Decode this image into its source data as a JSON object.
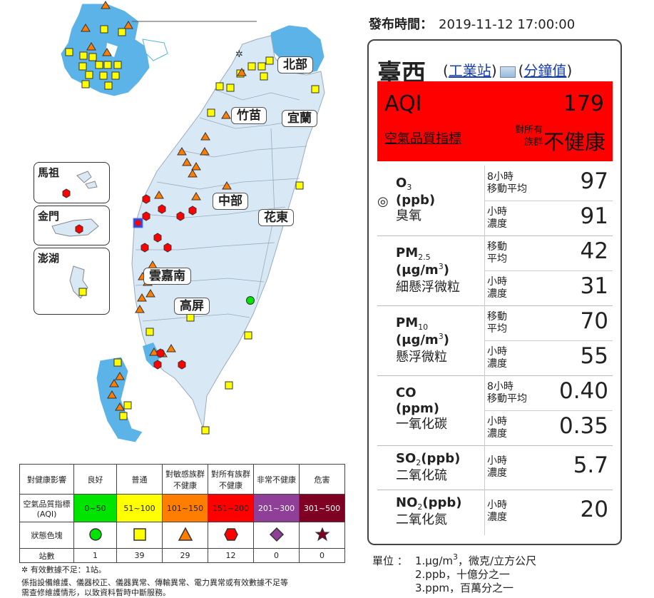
{
  "publish": {
    "label": "發布時間：",
    "time": "2019-11-12 17:00:00"
  },
  "map": {
    "regions": [
      "北部",
      "竹苗",
      "宜蘭",
      "中部",
      "花東",
      "雲嘉南",
      "高屏"
    ],
    "insets": [
      "馬祖",
      "金門",
      "澎湖"
    ]
  },
  "legend": {
    "header": [
      "對健康影響",
      "良好",
      "普通",
      "對敏感族群不健康",
      "對所有族群不健康",
      "非常不健康",
      "危害"
    ],
    "aqi_label": "空氣品質指標(AQI)",
    "ranges": [
      "0~50",
      "51~100",
      "101~150",
      "151~200",
      "201~300",
      "301~500"
    ],
    "symbol_label": "狀態色塊",
    "count_label": "站數",
    "counts": [
      "1",
      "39",
      "29",
      "12",
      "0",
      "0"
    ],
    "colors": [
      "#00e400",
      "#ffff00",
      "#ff7e00",
      "#ff0000",
      "#8f3f97",
      "#7e0023"
    ]
  },
  "notes": {
    "insufficient": "有效數據不足：1站。",
    "disclaimer1": "係指設備維護、儀器校正、儀器異常、傳輸異常、電力異常或有效數據不足等",
    "disclaimer2": "需查修維護情形，以致資料暫時中斷服務。"
  },
  "station": {
    "name": "臺西",
    "link1": "工業站",
    "link2": "分鐘值",
    "aqi_label": "AQI",
    "aqi_value": "179",
    "aqi_sub": "空氣品質指標",
    "group1": "對所有",
    "group2": "族群",
    "status": "不健康",
    "status_color": "#ff0000"
  },
  "pollutants": {
    "o3": {
      "name": "O",
      "sub": "3",
      "unit": "(ppb)",
      "cn": "臭氧",
      "l1a": "8小時",
      "l1b": "移動平均",
      "v1": "97",
      "l2a": "小時",
      "l2b": "濃度",
      "v2": "91"
    },
    "pm25": {
      "name": "PM",
      "sub": "2.5",
      "unit": "(μg/m",
      "unit_sup": "3",
      "unit_end": ")",
      "cn": "細懸浮微粒",
      "l1a": "移動",
      "l1b": "平均",
      "v1": "42",
      "l2a": "小時",
      "l2b": "濃度",
      "v2": "31"
    },
    "pm10": {
      "name": "PM",
      "sub": "10",
      "unit": "(μg/m",
      "unit_sup": "3",
      "unit_end": ")",
      "cn": "懸浮微粒",
      "l1a": "移動",
      "l1b": "平均",
      "v1": "70",
      "l2a": "小時",
      "l2b": "濃度",
      "v2": "55"
    },
    "co": {
      "name": "CO",
      "unit": "(ppm)",
      "cn": "一氧化碳",
      "l1a": "8小時",
      "l1b": "移動平均",
      "v1": "0.40",
      "l2a": "小時",
      "l2b": "濃度",
      "v2": "0.35"
    },
    "so2": {
      "name": "SO",
      "sub": "2",
      "unit": "(ppb)",
      "cn": "二氧化硫",
      "l2a": "小時",
      "l2b": "濃度",
      "v2": "5.7"
    },
    "no2": {
      "name": "NO",
      "sub": "2",
      "unit": "(ppb)",
      "cn": "二氧化氮",
      "l2a": "小時",
      "l2b": "濃度",
      "v2": "20"
    }
  },
  "units": {
    "label": "單位 ：",
    "u1a": "1.μg/m",
    "u1sup": "3",
    "u1b": "，微克/立方公尺",
    "u2": "2.ppb，十億分之一",
    "u3": "3.ppm，百萬分之一"
  }
}
